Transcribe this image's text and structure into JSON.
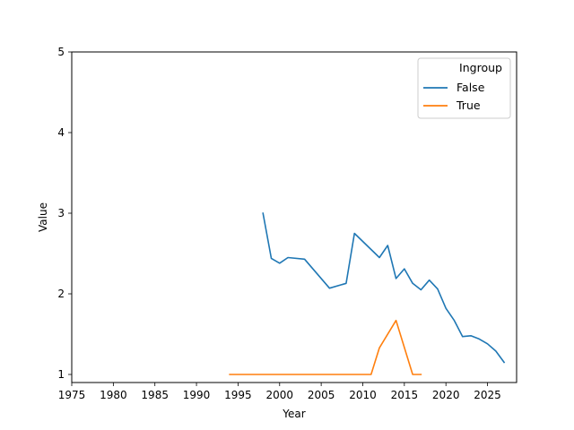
{
  "chart_data": {
    "type": "line",
    "xlabel": "Year",
    "ylabel": "Value",
    "xlim": [
      1975,
      2028.5
    ],
    "ylim": [
      0.9,
      5
    ],
    "xticks": [
      1975,
      1980,
      1985,
      1990,
      1995,
      2000,
      2005,
      2010,
      2015,
      2020,
      2025
    ],
    "yticks": [
      1,
      2,
      3,
      4,
      5
    ],
    "grid": false,
    "legend": {
      "title": "Ingroup",
      "placement": "top-right"
    },
    "series": [
      {
        "name": "False",
        "color": "#1f77b4",
        "x": [
          1998,
          1999,
          2000,
          2001,
          2003,
          2006,
          2008,
          2009,
          2012,
          2013,
          2014,
          2015,
          2016,
          2017,
          2018,
          2019,
          2020,
          2021,
          2022,
          2023,
          2024,
          2025,
          2026,
          2027
        ],
        "y": [
          3.0,
          2.44,
          2.38,
          2.45,
          2.43,
          2.07,
          2.13,
          2.75,
          2.45,
          2.6,
          2.19,
          2.31,
          2.13,
          2.05,
          2.17,
          2.06,
          1.82,
          1.67,
          1.47,
          1.48,
          1.44,
          1.38,
          1.29,
          1.15
        ]
      },
      {
        "name": "True",
        "color": "#ff7f0e",
        "x": [
          1994,
          1997,
          2000,
          2005,
          2011,
          2012,
          2014,
          2016,
          2017
        ],
        "y": [
          1.0,
          1.0,
          1.0,
          1.0,
          1.0,
          1.33,
          1.67,
          1.0,
          1.0
        ]
      }
    ]
  }
}
